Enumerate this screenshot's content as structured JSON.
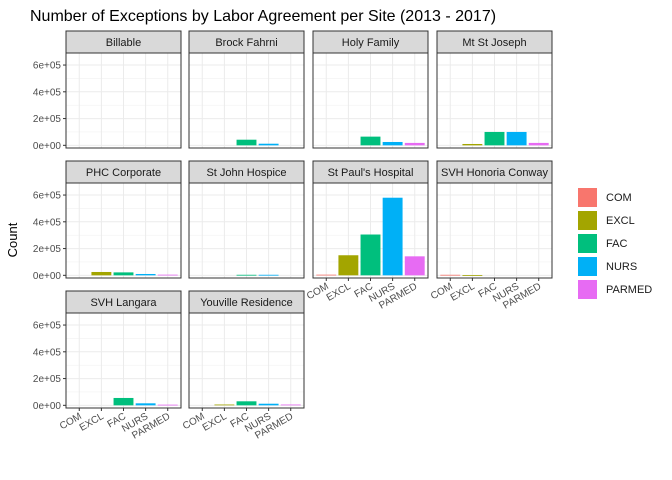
{
  "chart_data": {
    "type": "bar",
    "title": "Number of Exceptions by Labor Agreement per Site (2013 - 2017)",
    "ylabel": "Count",
    "xlabel": "",
    "facet_layout": "4 columns, 3 rows, shared y axis, x tick labels on bottom panel of each column",
    "ylim": [
      -20000,
      690000
    ],
    "y_ticks": [
      0,
      200000,
      400000,
      600000
    ],
    "y_tick_labels": [
      "0e+00",
      "2e+05",
      "4e+05",
      "6e+05"
    ],
    "categories": [
      "COM",
      "EXCL",
      "FAC",
      "NURS",
      "PARMED"
    ],
    "grid": true,
    "legend_position": "right",
    "legend": [
      {
        "label": "COM",
        "color": "#F8766D"
      },
      {
        "label": "EXCL",
        "color": "#A3A500"
      },
      {
        "label": "FAC",
        "color": "#00BF7D"
      },
      {
        "label": "NURS",
        "color": "#00B0F6"
      },
      {
        "label": "PARMED",
        "color": "#E76BF3"
      }
    ],
    "panels": [
      {
        "site": "Billable",
        "values": [
          0,
          0,
          0,
          0,
          0
        ]
      },
      {
        "site": "Brock Fahrni",
        "values": [
          0,
          0,
          42000,
          12000,
          0
        ]
      },
      {
        "site": "Holy Family",
        "values": [
          0,
          0,
          65000,
          25000,
          18000
        ]
      },
      {
        "site": "Mt St Joseph",
        "values": [
          0,
          10000,
          100000,
          100000,
          18000
        ]
      },
      {
        "site": "PHC Corporate",
        "values": [
          0,
          25000,
          22000,
          10000,
          5000
        ]
      },
      {
        "site": "St John Hospice",
        "values": [
          0,
          0,
          4000,
          4000,
          0
        ]
      },
      {
        "site": "St Paul's Hospital",
        "values": [
          5000,
          150000,
          305000,
          580000,
          142000
        ]
      },
      {
        "site": "SVH Honoria Conway",
        "values": [
          4000,
          1000,
          0,
          0,
          0
        ]
      },
      {
        "site": "SVH Langara",
        "values": [
          0,
          0,
          55000,
          15000,
          5000
        ]
      },
      {
        "site": "Youville Residence",
        "values": [
          0,
          6000,
          30000,
          12000,
          6000
        ]
      }
    ]
  }
}
